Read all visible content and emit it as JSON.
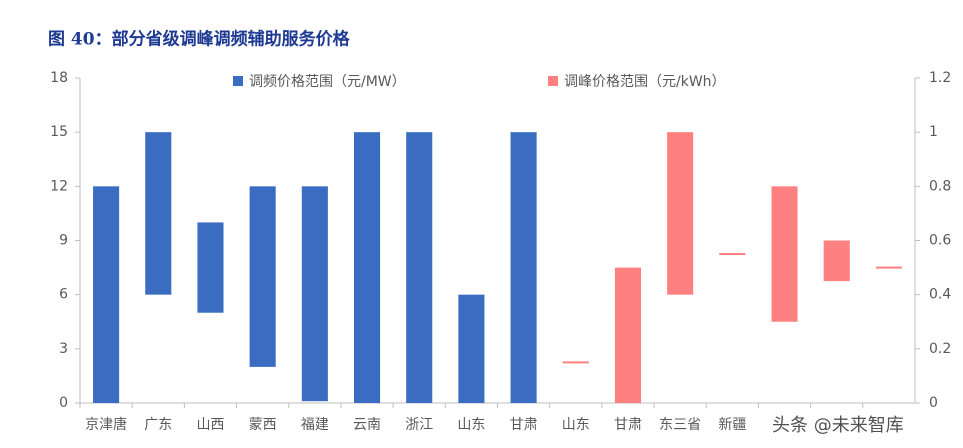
{
  "chart_data": {
    "type": "floating-bar",
    "title": "图 40：部分省级调峰调频辅助服务价格",
    "watermark": "头条 @未来智库",
    "categories": [
      "京津唐",
      "广东",
      "山西",
      "蒙西",
      "福建",
      "云南",
      "浙江",
      "山东",
      "甘肃",
      "山东",
      "甘肃",
      "东三省",
      "新疆",
      null,
      null,
      null
    ],
    "series": [
      {
        "name": "调频价格范围（元/MW）",
        "color": "#3a6dc2",
        "values": [
          [
            0,
            12
          ],
          [
            6,
            15
          ],
          [
            5,
            10
          ],
          [
            2,
            12
          ],
          [
            0.1,
            12
          ],
          [
            0,
            15
          ],
          [
            0,
            15
          ],
          [
            0,
            6
          ],
          [
            0,
            15
          ],
          null,
          null,
          null,
          null,
          null,
          null,
          null
        ]
      },
      {
        "name": "调峰价格范围（元/kWh）",
        "color": "#ff8080",
        "axis": "y2",
        "values": [
          null,
          null,
          null,
          null,
          null,
          null,
          null,
          null,
          null,
          [
            0.15,
            0.15
          ],
          [
            0,
            0.5
          ],
          [
            0.4,
            1
          ],
          [
            0.55,
            0.55
          ],
          [
            0.3,
            0.8
          ],
          [
            0.45,
            0.6
          ],
          [
            0.5,
            0.5
          ]
        ]
      }
    ],
    "ylim": [
      0,
      18
    ],
    "yticks": [
      0,
      3,
      6,
      9,
      12,
      15,
      18
    ],
    "y2lim": [
      0,
      1.2
    ],
    "y2ticks": [
      0,
      0.2,
      0.4,
      0.6,
      0.8,
      1,
      1.2
    ],
    "grid": false
  }
}
